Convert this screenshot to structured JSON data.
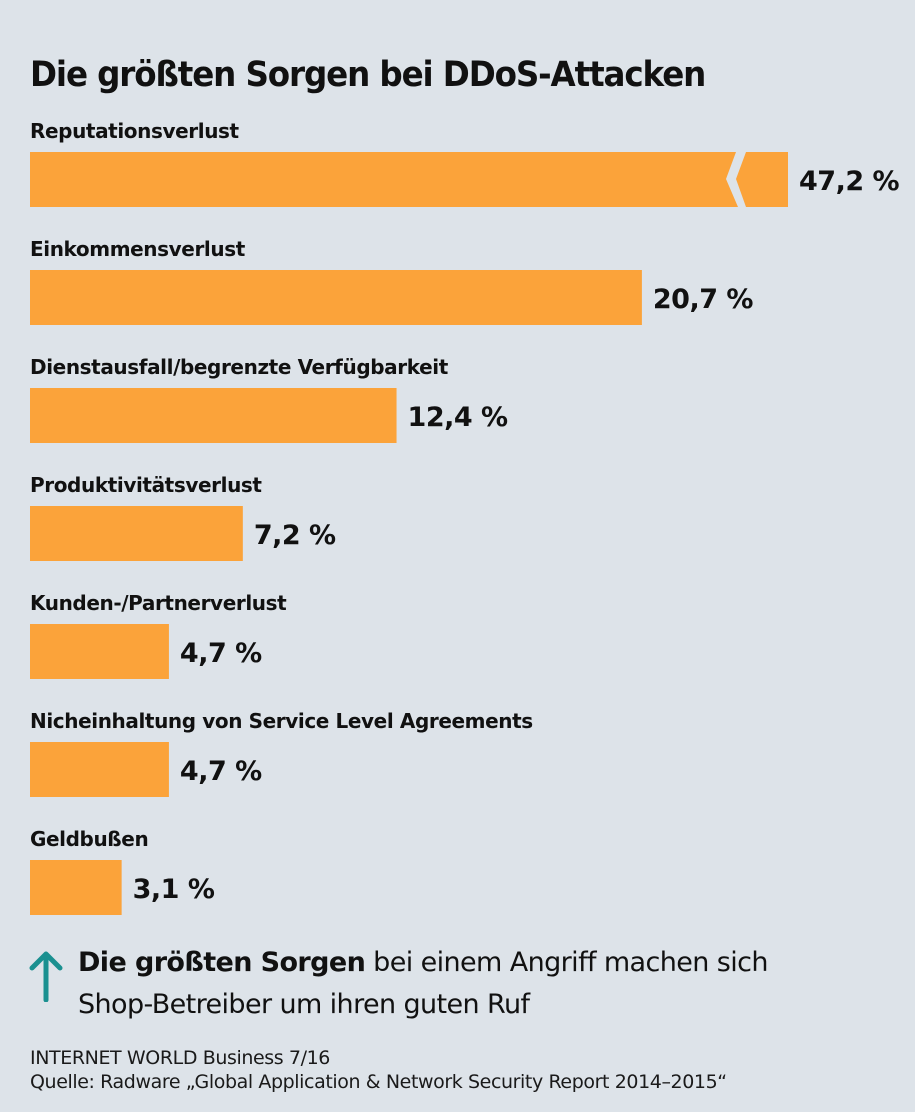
{
  "chart_data": {
    "type": "bar",
    "orientation": "horizontal",
    "title": "Die größten Sorgen bei DDoS-Attacken",
    "xlabel": "",
    "ylabel": "",
    "unit": "%",
    "categories": [
      "Reputationsverlust",
      "Einkommensverlust",
      "Dienstausfall/begrenzte Verfügbarkeit",
      "Produktivitätsverlust",
      "Kunden-/Partnerverlust",
      "Nicheinhaltung von Service Level Agreements",
      "Geldbußen"
    ],
    "values": [
      47.2,
      20.7,
      12.4,
      7.2,
      4.7,
      4.7,
      3.1
    ],
    "value_labels": [
      "47,2 %",
      "20,7 %",
      "12,4 %",
      "7,2 %",
      "4,7 %",
      "4,7 %",
      "3,1 %"
    ],
    "axis_break_on": [
      "Reputationsverlust"
    ],
    "grid": false,
    "legend": "none",
    "bar_color": "#fba33a"
  },
  "note": {
    "bold": "Die größten Sorgen",
    "line1_rest": " bei einem Angriff machen sich",
    "line2": "Shop-Betreiber um ihren guten Ruf"
  },
  "footer": {
    "publication": "INTERNET WORLD Business 7/16",
    "source": "Quelle: Radware „Global Application & Network Security Report 2014–2015“"
  },
  "colors": {
    "background": "#dde3e9",
    "bar": "#fba33a",
    "arrow": "#1a9090",
    "text": "#111111"
  }
}
